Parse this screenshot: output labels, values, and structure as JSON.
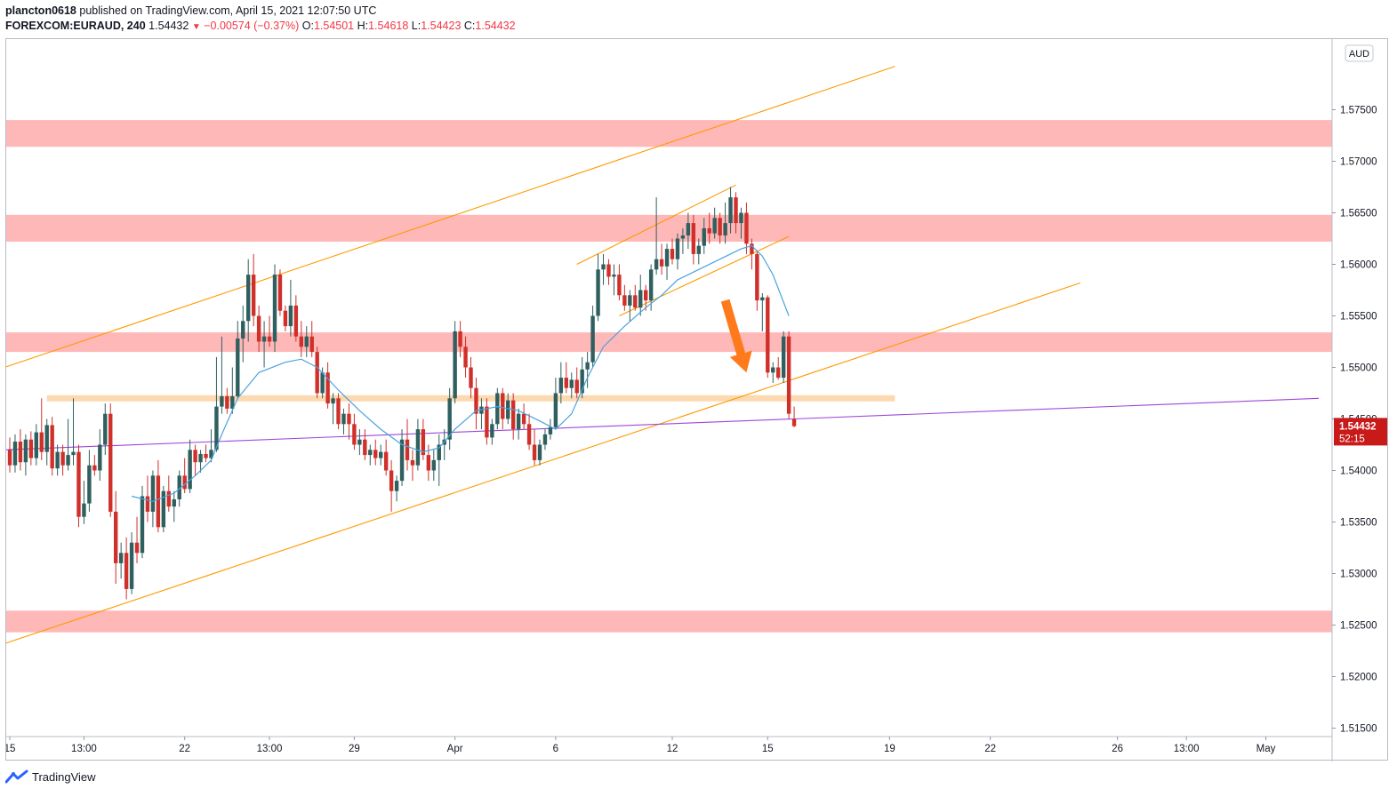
{
  "header": {
    "user": "plancton0618",
    "published_text": " published on TradingView.com, April 15, 2021 12:07:50 UTC",
    "symbol": "FOREXCOM:EURAUD, 240",
    "last": "1.54432",
    "change": "−0.00574 (−0.37%)",
    "o_label": "O:",
    "o": "1.54501",
    "h_label": "H:",
    "h": "1.54618",
    "l_label": "L:",
    "l": "1.54423",
    "c_label": "C:",
    "c": "1.54432"
  },
  "footer": {
    "brand": "TradingView"
  },
  "colors": {
    "up": "#2f5f5f",
    "down": "#d0302a",
    "zone": "#ffb8b8",
    "support": "#fcd9b0",
    "channel": "#ff9900",
    "ma": "#4aa3df",
    "trend": "#a046d8",
    "arrow": "#ff7a1a",
    "price_badge": "#c91a1a"
  },
  "chart_data": {
    "type": "candlestick",
    "symbol": "FOREXCOM:EURAUD",
    "timeframe": "240",
    "currency": "AUD",
    "ylim": [
      1.512,
      1.58
    ],
    "y_ticks": [
      "1.51500",
      "1.52000",
      "1.52500",
      "1.53000",
      "1.53500",
      "1.54000",
      "1.54500",
      "1.55000",
      "1.55500",
      "1.56000",
      "1.56500",
      "1.57000",
      "1.57500"
    ],
    "x_tick_labels": [
      "15",
      "13:00",
      "22",
      "13:00",
      "29",
      "Apr",
      "6",
      "12",
      "15",
      "19",
      "22",
      "26",
      "13:00",
      "May"
    ],
    "x_tick_index": [
      0,
      14,
      33,
      49,
      65,
      84,
      103,
      125,
      143,
      166,
      185,
      209,
      222,
      237
    ],
    "last_price": "1.54432",
    "countdown": "52:15",
    "candles_ohlc": [
      [
        1.542,
        1.5432,
        1.5398,
        1.5405
      ],
      [
        1.5405,
        1.5435,
        1.5398,
        1.5428
      ],
      [
        1.5428,
        1.544,
        1.54,
        1.5408
      ],
      [
        1.5408,
        1.5435,
        1.5395,
        1.543
      ],
      [
        1.543,
        1.5438,
        1.5405,
        1.5412
      ],
      [
        1.5412,
        1.5445,
        1.5405,
        1.5437
      ],
      [
        1.5437,
        1.547,
        1.541,
        1.5418
      ],
      [
        1.5418,
        1.545,
        1.5405,
        1.5444
      ],
      [
        1.5444,
        1.5452,
        1.5395,
        1.5402
      ],
      [
        1.5402,
        1.5425,
        1.5395,
        1.5418
      ],
      [
        1.5418,
        1.5425,
        1.5395,
        1.5405
      ],
      [
        1.5405,
        1.545,
        1.54,
        1.5415
      ],
      [
        1.5415,
        1.547,
        1.5405,
        1.5418
      ],
      [
        1.5418,
        1.5425,
        1.5345,
        1.5355
      ],
      [
        1.5355,
        1.539,
        1.5348,
        1.5368
      ],
      [
        1.5368,
        1.542,
        1.536,
        1.5405
      ],
      [
        1.5405,
        1.5415,
        1.5395,
        1.54
      ],
      [
        1.54,
        1.544,
        1.539,
        1.5425
      ],
      [
        1.5425,
        1.5465,
        1.5415,
        1.5455
      ],
      [
        1.5455,
        1.5465,
        1.5355,
        1.536
      ],
      [
        1.536,
        1.538,
        1.529,
        1.531
      ],
      [
        1.531,
        1.533,
        1.5295,
        1.532
      ],
      [
        1.532,
        1.5335,
        1.5275,
        1.5285
      ],
      [
        1.5285,
        1.534,
        1.528,
        1.533
      ],
      [
        1.533,
        1.5355,
        1.531,
        1.532
      ],
      [
        1.532,
        1.5385,
        1.5315,
        1.5375
      ],
      [
        1.5375,
        1.5395,
        1.535,
        1.536
      ],
      [
        1.536,
        1.54,
        1.5345,
        1.5395
      ],
      [
        1.5395,
        1.541,
        1.534,
        1.5345
      ],
      [
        1.5345,
        1.5385,
        1.534,
        1.538
      ],
      [
        1.538,
        1.5395,
        1.536,
        1.5365
      ],
      [
        1.5365,
        1.538,
        1.535,
        1.5372
      ],
      [
        1.5372,
        1.54,
        1.5365,
        1.5395
      ],
      [
        1.5395,
        1.5412,
        1.5378,
        1.5382
      ],
      [
        1.5382,
        1.543,
        1.5378,
        1.542
      ],
      [
        1.542,
        1.5425,
        1.5395,
        1.5408
      ],
      [
        1.5408,
        1.542,
        1.5398,
        1.5416
      ],
      [
        1.5416,
        1.5425,
        1.5408,
        1.5412
      ],
      [
        1.5412,
        1.544,
        1.5408,
        1.542
      ],
      [
        1.542,
        1.551,
        1.5418,
        1.5462
      ],
      [
        1.5462,
        1.553,
        1.5455,
        1.5472
      ],
      [
        1.5472,
        1.548,
        1.5455,
        1.546
      ],
      [
        1.546,
        1.55,
        1.5455,
        1.5472
      ],
      [
        1.5472,
        1.5545,
        1.547,
        1.5528
      ],
      [
        1.5528,
        1.556,
        1.5505,
        1.5545
      ],
      [
        1.5545,
        1.5605,
        1.5525,
        1.559
      ],
      [
        1.559,
        1.561,
        1.554,
        1.555
      ],
      [
        1.555,
        1.556,
        1.5515,
        1.5525
      ],
      [
        1.5525,
        1.5545,
        1.55,
        1.553
      ],
      [
        1.553,
        1.555,
        1.552,
        1.5525
      ],
      [
        1.5525,
        1.56,
        1.5515,
        1.559
      ],
      [
        1.559,
        1.5595,
        1.555,
        1.5555
      ],
      [
        1.5555,
        1.556,
        1.5535,
        1.554
      ],
      [
        1.554,
        1.5585,
        1.553,
        1.556
      ],
      [
        1.556,
        1.557,
        1.5525,
        1.553
      ],
      [
        1.553,
        1.5545,
        1.551,
        1.552
      ],
      [
        1.552,
        1.554,
        1.551,
        1.553
      ],
      [
        1.553,
        1.5545,
        1.551,
        1.5515
      ],
      [
        1.5515,
        1.552,
        1.547,
        1.5475
      ],
      [
        1.5475,
        1.55,
        1.547,
        1.5495
      ],
      [
        1.5495,
        1.5505,
        1.546,
        1.5465
      ],
      [
        1.5465,
        1.5475,
        1.5445,
        1.547
      ],
      [
        1.547,
        1.5475,
        1.544,
        1.5445
      ],
      [
        1.5445,
        1.546,
        1.5435,
        1.5455
      ],
      [
        1.5455,
        1.5465,
        1.543,
        1.5445
      ],
      [
        1.5445,
        1.5455,
        1.542,
        1.5425
      ],
      [
        1.5425,
        1.544,
        1.5415,
        1.543
      ],
      [
        1.543,
        1.544,
        1.541,
        1.5415
      ],
      [
        1.5415,
        1.5425,
        1.5405,
        1.542
      ],
      [
        1.542,
        1.543,
        1.5405,
        1.5412
      ],
      [
        1.5412,
        1.5425,
        1.5405,
        1.5418
      ],
      [
        1.5418,
        1.543,
        1.5395,
        1.54
      ],
      [
        1.54,
        1.541,
        1.536,
        1.538
      ],
      [
        1.538,
        1.5395,
        1.537,
        1.539
      ],
      [
        1.539,
        1.544,
        1.5385,
        1.543
      ],
      [
        1.543,
        1.545,
        1.54,
        1.541
      ],
      [
        1.541,
        1.542,
        1.539,
        1.5405
      ],
      [
        1.5405,
        1.545,
        1.54,
        1.544
      ],
      [
        1.544,
        1.545,
        1.541,
        1.5415
      ],
      [
        1.5415,
        1.5425,
        1.539,
        1.54
      ],
      [
        1.54,
        1.542,
        1.539,
        1.541
      ],
      [
        1.541,
        1.5435,
        1.5385,
        1.5425
      ],
      [
        1.5425,
        1.544,
        1.541,
        1.543
      ],
      [
        1.543,
        1.548,
        1.542,
        1.547
      ],
      [
        1.547,
        1.5545,
        1.5465,
        1.5535
      ],
      [
        1.5535,
        1.5545,
        1.551,
        1.552
      ],
      [
        1.552,
        1.553,
        1.549,
        1.55
      ],
      [
        1.55,
        1.551,
        1.547,
        1.548
      ],
      [
        1.548,
        1.549,
        1.544,
        1.5455
      ],
      [
        1.5455,
        1.547,
        1.544,
        1.5462
      ],
      [
        1.5462,
        1.547,
        1.5425,
        1.5432
      ],
      [
        1.5432,
        1.545,
        1.5425,
        1.5445
      ],
      [
        1.5445,
        1.548,
        1.544,
        1.5475
      ],
      [
        1.5475,
        1.548,
        1.544,
        1.545
      ],
      [
        1.545,
        1.5475,
        1.5445,
        1.5468
      ],
      [
        1.5468,
        1.5475,
        1.543,
        1.544
      ],
      [
        1.544,
        1.546,
        1.543,
        1.5455
      ],
      [
        1.5455,
        1.5465,
        1.544,
        1.5445
      ],
      [
        1.5445,
        1.5455,
        1.542,
        1.5425
      ],
      [
        1.5425,
        1.544,
        1.5405,
        1.541
      ],
      [
        1.541,
        1.543,
        1.5405,
        1.5425
      ],
      [
        1.5425,
        1.544,
        1.542,
        1.5435
      ],
      [
        1.5435,
        1.545,
        1.543,
        1.5442
      ],
      [
        1.5442,
        1.549,
        1.544,
        1.5475
      ],
      [
        1.5475,
        1.5505,
        1.5465,
        1.549
      ],
      [
        1.549,
        1.5505,
        1.5475,
        1.548
      ],
      [
        1.548,
        1.5495,
        1.547,
        1.5488
      ],
      [
        1.5488,
        1.55,
        1.547,
        1.5475
      ],
      [
        1.5475,
        1.551,
        1.547,
        1.5498
      ],
      [
        1.5498,
        1.5515,
        1.548,
        1.5505
      ],
      [
        1.5505,
        1.556,
        1.55,
        1.555
      ],
      [
        1.555,
        1.561,
        1.5545,
        1.5595
      ],
      [
        1.5595,
        1.561,
        1.558,
        1.56
      ],
      [
        1.56,
        1.5605,
        1.558,
        1.5588
      ],
      [
        1.5588,
        1.56,
        1.557,
        1.559
      ],
      [
        1.559,
        1.56,
        1.5565,
        1.557
      ],
      [
        1.557,
        1.558,
        1.5555,
        1.556
      ],
      [
        1.556,
        1.5575,
        1.5545,
        1.557
      ],
      [
        1.557,
        1.558,
        1.5555,
        1.5558
      ],
      [
        1.5558,
        1.559,
        1.555,
        1.5575
      ],
      [
        1.5575,
        1.558,
        1.5555,
        1.5565
      ],
      [
        1.5565,
        1.56,
        1.5555,
        1.5595
      ],
      [
        1.5595,
        1.5665,
        1.559,
        1.5605
      ],
      [
        1.5605,
        1.562,
        1.559,
        1.5598
      ],
      [
        1.5598,
        1.562,
        1.5585,
        1.5615
      ],
      [
        1.5615,
        1.5625,
        1.56,
        1.5605
      ],
      [
        1.5605,
        1.563,
        1.5595,
        1.5625
      ],
      [
        1.5625,
        1.5635,
        1.561,
        1.5628
      ],
      [
        1.5628,
        1.565,
        1.5615,
        1.564
      ],
      [
        1.564,
        1.5648,
        1.56,
        1.561
      ],
      [
        1.561,
        1.5625,
        1.56,
        1.5618
      ],
      [
        1.5618,
        1.5645,
        1.561,
        1.5635
      ],
      [
        1.5635,
        1.565,
        1.562,
        1.563
      ],
      [
        1.563,
        1.5655,
        1.5625,
        1.5645
      ],
      [
        1.5645,
        1.565,
        1.562,
        1.5628
      ],
      [
        1.5628,
        1.566,
        1.562,
        1.564
      ],
      [
        1.564,
        1.5675,
        1.563,
        1.5665
      ],
      [
        1.5665,
        1.567,
        1.563,
        1.564
      ],
      [
        1.564,
        1.5655,
        1.5625,
        1.565
      ],
      [
        1.565,
        1.566,
        1.561,
        1.562
      ],
      [
        1.562,
        1.5625,
        1.5595,
        1.561
      ],
      [
        1.561,
        1.5612,
        1.5555,
        1.5565
      ],
      [
        1.5565,
        1.5572,
        1.5535,
        1.5568
      ],
      [
        1.5568,
        1.557,
        1.549,
        1.5495
      ],
      [
        1.5495,
        1.5505,
        1.5485,
        1.55
      ],
      [
        1.55,
        1.551,
        1.5488,
        1.549
      ],
      [
        1.549,
        1.5535,
        1.5485,
        1.553
      ],
      [
        1.553,
        1.5535,
        1.545,
        1.5455
      ],
      [
        1.545,
        1.5462,
        1.5442,
        1.5443
      ]
    ],
    "ma": [
      [
        23,
        1.5375
      ],
      [
        27,
        1.537
      ],
      [
        31,
        1.5378
      ],
      [
        35,
        1.5395
      ],
      [
        38,
        1.541
      ],
      [
        40,
        1.5435
      ],
      [
        43,
        1.547
      ],
      [
        47,
        1.5495
      ],
      [
        52,
        1.5505
      ],
      [
        55,
        1.5508
      ],
      [
        58,
        1.55
      ],
      [
        62,
        1.5478
      ],
      [
        66,
        1.5458
      ],
      [
        70,
        1.544
      ],
      [
        74,
        1.5425
      ],
      [
        78,
        1.5418
      ],
      [
        81,
        1.5422
      ],
      [
        84,
        1.544
      ],
      [
        88,
        1.5458
      ],
      [
        92,
        1.5462
      ],
      [
        96,
        1.5458
      ],
      [
        100,
        1.5448
      ],
      [
        103,
        1.544
      ],
      [
        106,
        1.5455
      ],
      [
        109,
        1.549
      ],
      [
        112,
        1.552
      ],
      [
        116,
        1.554
      ],
      [
        120,
        1.5558
      ],
      [
        123,
        1.557
      ],
      [
        126,
        1.5585
      ],
      [
        130,
        1.5595
      ],
      [
        134,
        1.5605
      ],
      [
        138,
        1.5615
      ],
      [
        140,
        1.5618
      ],
      [
        142,
        1.5608
      ],
      [
        144,
        1.559
      ],
      [
        147,
        1.555
      ]
    ],
    "drawings": {
      "resistance_zones": [
        [
          1.5714,
          1.574
        ],
        [
          1.5622,
          1.5648
        ],
        [
          1.5515,
          1.5534
        ],
        [
          1.5243,
          1.5264
        ]
      ],
      "support_band": {
        "y": [
          1.5467,
          1.5473
        ],
        "x": [
          7,
          167
        ]
      },
      "outer_channel_upper": [
        [
          -1,
          1.55
        ],
        [
          167,
          1.5792
        ]
      ],
      "outer_channel_lower": [
        [
          -1,
          1.5232
        ],
        [
          202,
          1.5582
        ]
      ],
      "inner_channel_upper": [
        [
          107,
          1.56
        ],
        [
          137,
          1.5677
        ]
      ],
      "inner_channel_lower": [
        [
          115,
          1.555
        ],
        [
          147,
          1.5627
        ]
      ],
      "trendline_purple": [
        [
          -1,
          1.542
        ],
        [
          247,
          1.547
        ]
      ],
      "arrow": {
        "from": [
          135,
          1.5565
        ],
        "to": [
          139,
          1.5495
        ]
      }
    }
  }
}
